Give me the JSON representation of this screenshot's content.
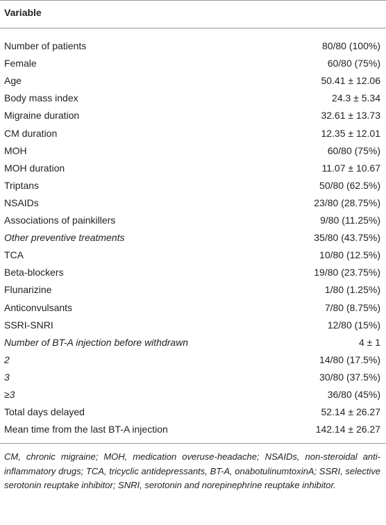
{
  "table": {
    "header": [
      "Variable"
    ],
    "rows": [
      {
        "label": "Number of patients",
        "value": "80/80 (100%)"
      },
      {
        "label": "Female",
        "value": "60/80 (75%)"
      },
      {
        "label": "Age",
        "value": "50.41 ± 12.06"
      },
      {
        "label": "Body mass index",
        "value": "24.3 ± 5.34"
      },
      {
        "label": "Migraine duration",
        "value": "32.61 ± 13.73"
      },
      {
        "label": "CM duration",
        "value": "12.35 ± 12.01"
      },
      {
        "label": "MOH",
        "value": "60/80 (75%)"
      },
      {
        "label": "MOH duration",
        "value": "11.07 ± 10.67"
      },
      {
        "label": "Triptans",
        "value": "50/80 (62.5%)"
      },
      {
        "label": "NSAIDs",
        "value": "23/80 (28.75%)"
      },
      {
        "label": "Associations of painkillers",
        "value": "9/80 (11.25%)"
      },
      {
        "label": "Other preventive treatments",
        "value": "35/80 (43.75%)",
        "italic": true
      },
      {
        "label": "TCA",
        "value": "10/80 (12.5%)"
      },
      {
        "label": "Beta-blockers",
        "value": "19/80 (23.75%)"
      },
      {
        "label": "Flunarizine",
        "value": "1/80 (1.25%)"
      },
      {
        "label": "Anticonvulsants",
        "value": "7/80 (8.75%)"
      },
      {
        "label": "SSRI-SNRI",
        "value": "12/80 (15%)"
      },
      {
        "label": "Number of BT-A injection before withdrawn",
        "value": "4 ± 1",
        "italic": true
      },
      {
        "label": "2",
        "value": "14/80 (17.5%)",
        "italic": true
      },
      {
        "label": "3",
        "value": "30/80 (37.5%)",
        "italic": true
      },
      {
        "label": "≥3",
        "value": "36/80 (45%)",
        "italic": true
      },
      {
        "label": "Total days delayed",
        "value": "52.14 ± 26.27"
      },
      {
        "label": "Mean time from the last BT-A injection",
        "value": "142.14 ± 26.27"
      }
    ],
    "footnote": "CM, chronic migraine; MOH, medication overuse-headache; NSAIDs, non-steroidal anti-inflammatory drugs; TCA, tricyclic antidepressants, BT-A, onabotulinumtoxinA; SSRI, selective serotonin reuptake inhibitor; SNRI, serotonin and norepinephrine reuptake inhibitor."
  }
}
